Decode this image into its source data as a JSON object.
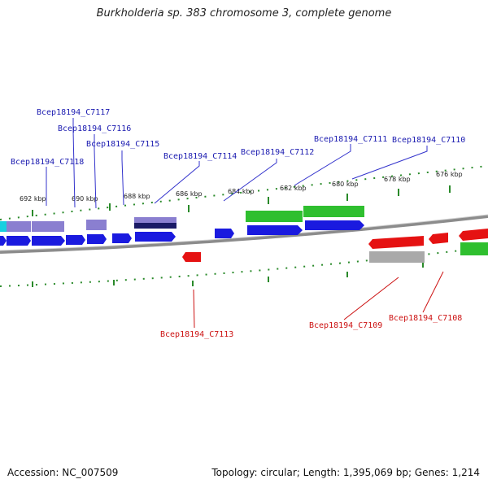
{
  "title": "Burkholderia sp. 383 chromosome 3, complete genome",
  "footer": {
    "accession": "Accession: NC_007509",
    "topology": "Topology: circular; Length: 1,395,069 bp; Genes: 1,214"
  },
  "colors": {
    "forward_cds": "#1a1adf",
    "reverse_cds": "#e51212",
    "lavender_feature": "#8a7fd0",
    "navy_feature": "#1a1a66",
    "green_feature": "#2fbf2f",
    "gray_feature": "#a9a9a9",
    "cyan_feature": "#17d0e0",
    "backbone": "#8c8c8c",
    "tick": "#2a8a2a",
    "forward_label": "#1a1ab0",
    "reverse_label": "#cc1111"
  },
  "scale": {
    "ticks": [
      "692 kbp",
      "690 kbp",
      "688 kbp",
      "686 kbp",
      "684 kbp",
      "682 kbp",
      "680 kbp",
      "678 kbp",
      "676 kbp"
    ]
  },
  "genes_forward": [
    {
      "label": "Bcep18194_C7117"
    },
    {
      "label": "Bcep18194_C7116"
    },
    {
      "label": "Bcep18194_C7115"
    },
    {
      "label": "Bcep18194_C7118"
    },
    {
      "label": "Bcep18194_C7114"
    },
    {
      "label": "Bcep18194_C7112"
    },
    {
      "label": "Bcep18194_C7111"
    },
    {
      "label": "Bcep18194_C7110"
    }
  ],
  "genes_reverse": [
    {
      "label": "Bcep18194_C7113"
    },
    {
      "label": "Bcep18194_C7109"
    },
    {
      "label": "Bcep18194_C7108"
    }
  ]
}
